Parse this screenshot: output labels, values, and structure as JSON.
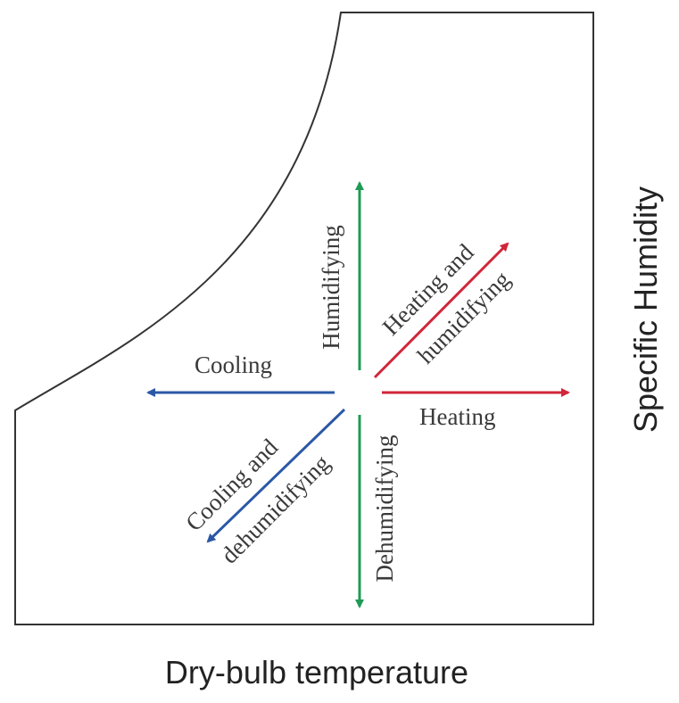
{
  "axes": {
    "x_label": "Dry-bulb temperature",
    "y_label": "Specific Humidity"
  },
  "processes": {
    "heating": "Heating",
    "cooling": "Cooling",
    "humidifying": "Humidifying",
    "dehumidifying": "Dehumidifying",
    "heating_humidifying_line1": "Heating and",
    "heating_humidifying_line2": "humidifying",
    "cooling_dehumidifying_line1": "Cooling and",
    "cooling_dehumidifying_line2": "dehumidifying"
  },
  "colors": {
    "heating": "#d1263a",
    "cooling": "#2b58a6",
    "humidity": "#1f9a55",
    "frame": "#333333"
  }
}
